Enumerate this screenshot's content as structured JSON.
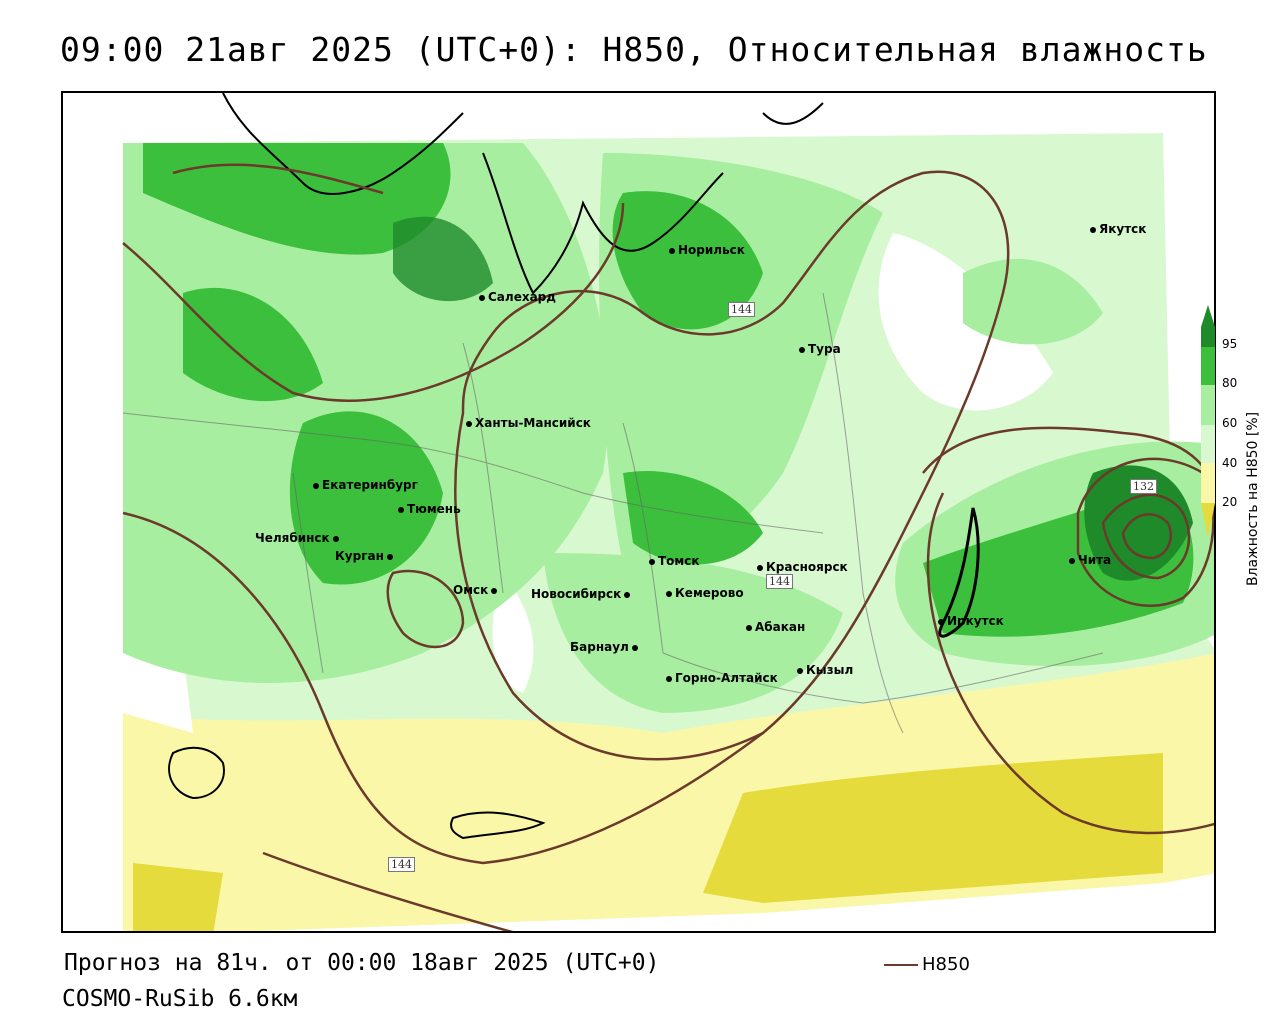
{
  "header": {
    "title": "09:00 21авг 2025 (UTC+0): H850, Относительная влажность"
  },
  "map": {
    "cities": [
      {
        "name": "Норильск"
      },
      {
        "name": "Салехард"
      },
      {
        "name": "Тура"
      },
      {
        "name": "Якутск"
      },
      {
        "name": "Ханты-Мансийск"
      },
      {
        "name": "Екатеринбург"
      },
      {
        "name": "Тюмень"
      },
      {
        "name": "Челябинск"
      },
      {
        "name": "Курган"
      },
      {
        "name": "Омск"
      },
      {
        "name": "Новосибирск"
      },
      {
        "name": "Томск"
      },
      {
        "name": "Кемерово"
      },
      {
        "name": "Красноярск"
      },
      {
        "name": "Абакан"
      },
      {
        "name": "Барнаул"
      },
      {
        "name": "Горно-Алтайск"
      },
      {
        "name": "Кызыл"
      },
      {
        "name": "Иркутск"
      },
      {
        "name": "Чита"
      }
    ],
    "contour_labels": [
      "144",
      "144",
      "144",
      "132"
    ],
    "colors": {
      "c95": "#1e8a2a",
      "c80": "#3cbf3c",
      "c60": "#a8eea0",
      "c40": "#d8f8d0",
      "c20": "#fbf7a8",
      "c0": "#e6db3c",
      "contour": "#6b3a2a"
    }
  },
  "colorbar": {
    "ticks": [
      "95",
      "80",
      "60",
      "40",
      "20"
    ],
    "title": "Влажность на H850 [%]"
  },
  "footer": {
    "forecast": "Прогноз на 81ч. от 00:00 18авг 2025 (UTC+0)",
    "model": "COSMO-RuSib 6.6км",
    "legend_label": "H850"
  }
}
